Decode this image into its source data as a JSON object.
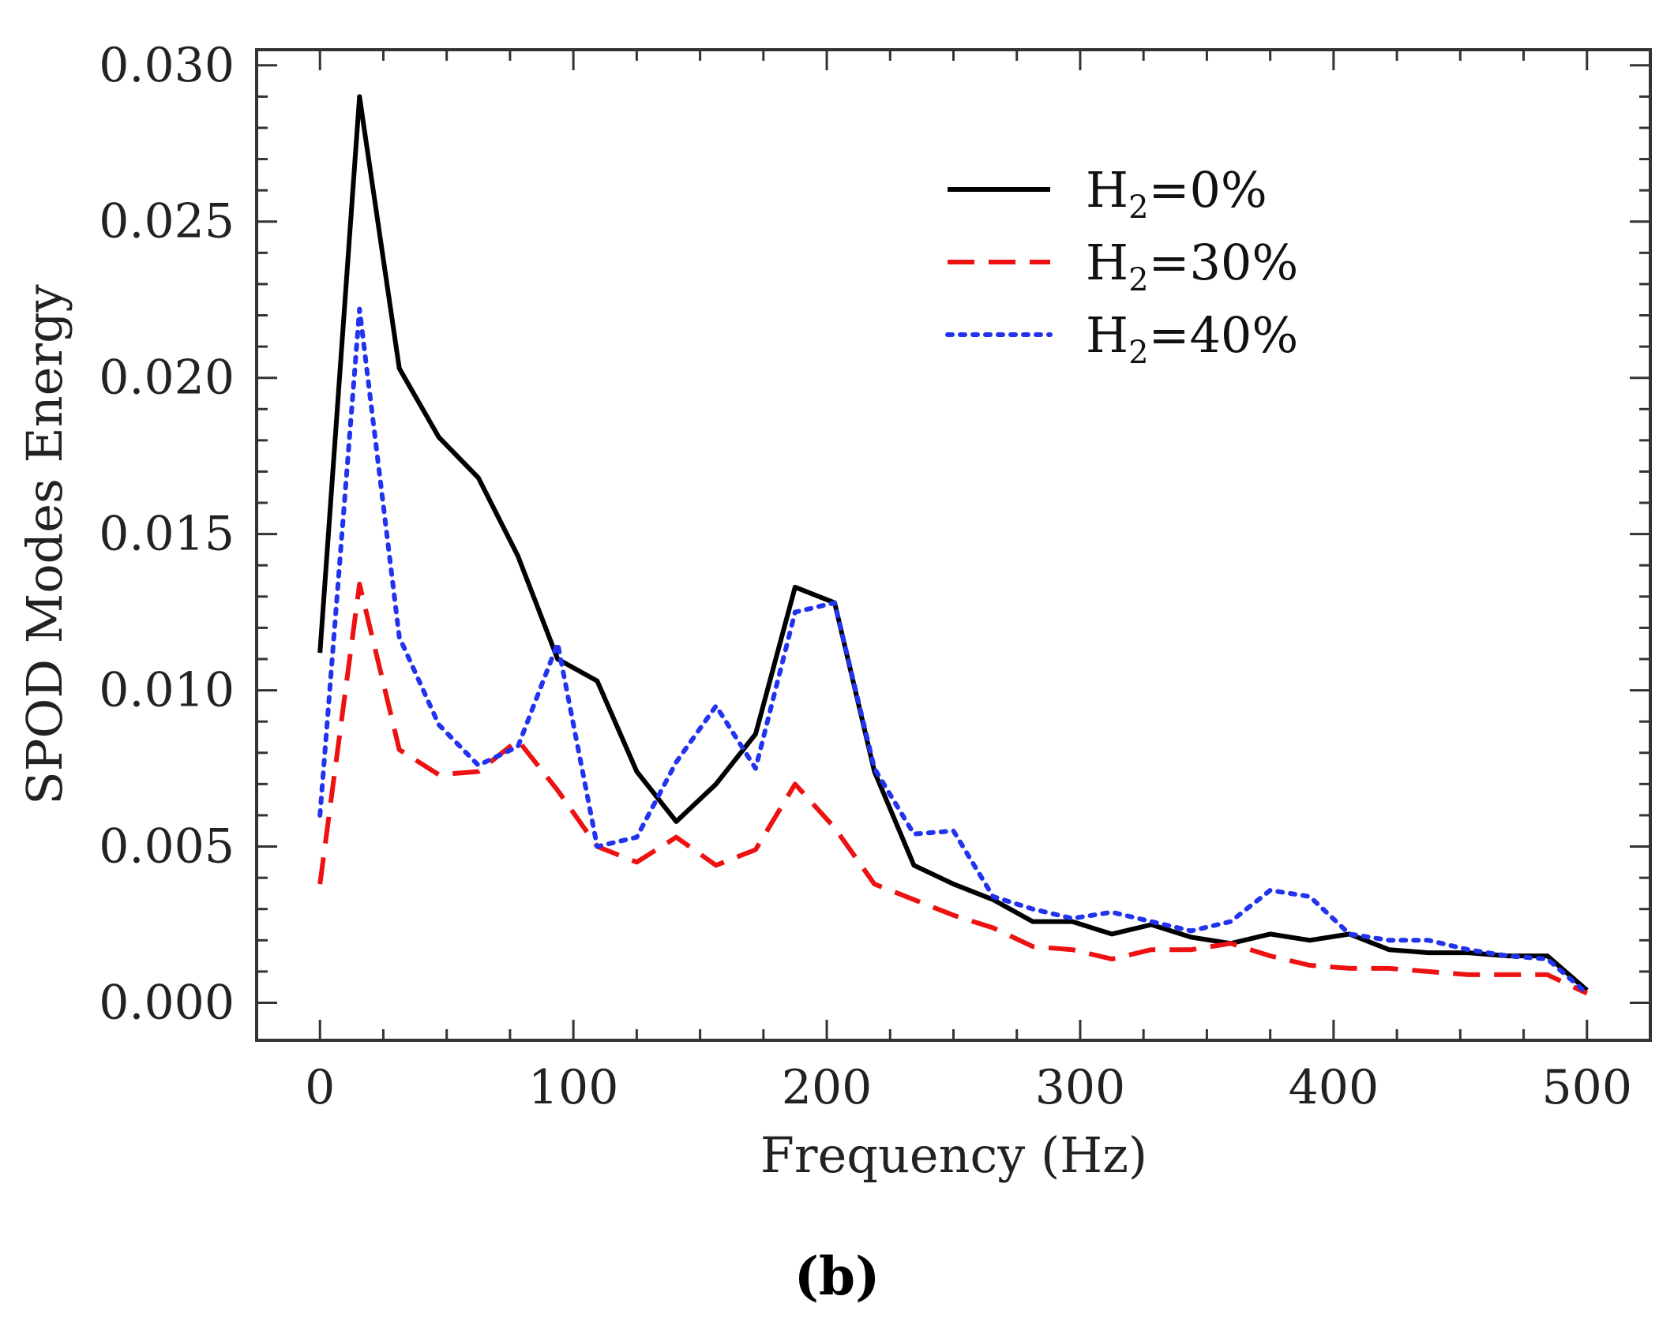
{
  "chart_data": {
    "type": "line",
    "title": "",
    "panel_label": "(b)",
    "xlabel": "Frequency (Hz)",
    "ylabel": "SPOD Modes Energy",
    "xlim": [
      -25,
      525
    ],
    "ylim": [
      -0.0012,
      0.0305
    ],
    "xticks": [
      0,
      100,
      200,
      300,
      400,
      500
    ],
    "xtick_labels": [
      "0",
      "100",
      "200",
      "300",
      "400",
      "500"
    ],
    "yticks": [
      0.0,
      0.005,
      0.01,
      0.015,
      0.02,
      0.025,
      0.03
    ],
    "ytick_labels": [
      "0.000",
      "0.005",
      "0.010",
      "0.015",
      "0.020",
      "0.025",
      "0.030"
    ],
    "grid": false,
    "legend_position": "top-right",
    "x": [
      0,
      15.6,
      31.3,
      46.9,
      62.5,
      78.1,
      93.8,
      109.4,
      125,
      140.6,
      156.3,
      171.9,
      187.5,
      203.1,
      218.8,
      234.4,
      250,
      265.6,
      281.3,
      296.9,
      312.5,
      328.1,
      343.8,
      359.4,
      375,
      390.6,
      406.3,
      421.9,
      437.5,
      453.1,
      468.8,
      484.4,
      500
    ],
    "series": [
      {
        "name": "H",
        "subscript": "2",
        "suffix": "=0%",
        "color": "#000000",
        "dash": "solid",
        "values": [
          0.0112,
          0.029,
          0.0203,
          0.0181,
          0.0168,
          0.0143,
          0.011,
          0.0103,
          0.0074,
          0.0058,
          0.007,
          0.0086,
          0.0133,
          0.0128,
          0.0074,
          0.0044,
          0.0038,
          0.0033,
          0.0026,
          0.0026,
          0.0022,
          0.0025,
          0.0021,
          0.0019,
          0.0022,
          0.002,
          0.0022,
          0.0017,
          0.0016,
          0.0016,
          0.0015,
          0.0015,
          0.0004
        ]
      },
      {
        "name": "H",
        "subscript": "2",
        "suffix": "=30%",
        "color": "#ee1111",
        "dash": "dashed",
        "values": [
          0.0038,
          0.0134,
          0.0081,
          0.0073,
          0.0074,
          0.0084,
          0.0068,
          0.005,
          0.0045,
          0.0053,
          0.0044,
          0.0049,
          0.007,
          0.0056,
          0.0038,
          0.0033,
          0.0028,
          0.0024,
          0.0018,
          0.0017,
          0.0014,
          0.0017,
          0.0017,
          0.0019,
          0.0015,
          0.0012,
          0.0011,
          0.0011,
          0.001,
          0.0009,
          0.0009,
          0.0009,
          0.0003
        ]
      },
      {
        "name": "H",
        "subscript": "2",
        "suffix": "=40%",
        "color": "#2233ee",
        "dash": "dotted",
        "values": [
          0.006,
          0.0222,
          0.0117,
          0.0089,
          0.0076,
          0.0082,
          0.0115,
          0.005,
          0.0053,
          0.0077,
          0.0095,
          0.0075,
          0.0125,
          0.0128,
          0.0075,
          0.0054,
          0.0055,
          0.0034,
          0.003,
          0.0027,
          0.0029,
          0.0026,
          0.0023,
          0.0026,
          0.0036,
          0.0034,
          0.0022,
          0.002,
          0.002,
          0.0017,
          0.0015,
          0.0014,
          0.0003
        ]
      }
    ]
  }
}
